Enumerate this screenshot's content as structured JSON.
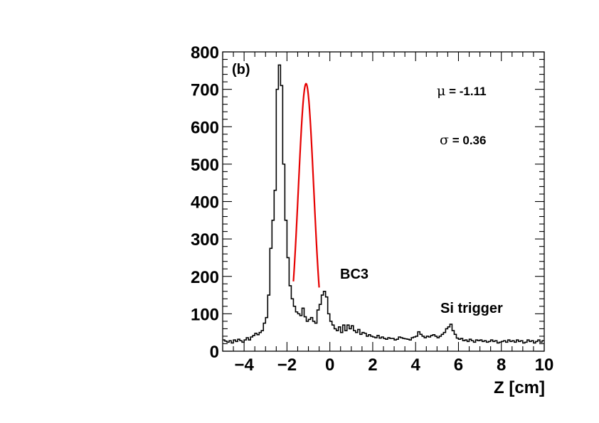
{
  "chart_data": {
    "type": "histogram",
    "panel_label": "(b)",
    "xlabel": "Z [cm]",
    "ylabel": "",
    "xlim": [
      -5,
      10
    ],
    "ylim": [
      0,
      800
    ],
    "x_ticks": [
      -4,
      -2,
      0,
      2,
      4,
      6,
      8,
      10
    ],
    "x_tick_labels": [
      "−4",
      "−2",
      "0",
      "2",
      "4",
      "6",
      "8",
      "10"
    ],
    "y_ticks": [
      0,
      100,
      200,
      300,
      400,
      500,
      600,
      700,
      800
    ],
    "y_tick_labels": [
      "0",
      "100",
      "200",
      "300",
      "400",
      "500",
      "600",
      "700",
      "800"
    ],
    "bin_width": 0.1,
    "bin_start": -5,
    "counts": [
      30,
      27,
      24,
      28,
      22,
      30,
      26,
      32,
      28,
      24,
      30,
      36,
      30,
      38,
      42,
      48,
      44,
      50,
      55,
      75,
      90,
      150,
      275,
      350,
      430,
      700,
      765,
      710,
      500,
      350,
      250,
      175,
      140,
      120,
      105,
      100,
      95,
      115,
      92,
      80,
      85,
      90,
      80,
      75,
      110,
      125,
      150,
      160,
      145,
      100,
      80,
      70,
      60,
      55,
      65,
      50,
      70,
      55,
      70,
      60,
      68,
      55,
      50,
      58,
      45,
      50,
      48,
      40,
      44,
      40,
      38,
      36,
      42,
      35,
      38,
      34,
      32,
      36,
      34,
      34,
      30,
      32,
      38,
      36,
      34,
      33,
      32,
      30,
      36,
      38,
      40,
      52,
      45,
      40,
      36,
      40,
      38,
      42,
      44,
      40,
      36,
      40,
      45,
      50,
      60,
      65,
      72,
      55,
      45,
      35,
      32,
      34,
      28,
      30,
      26,
      32,
      28,
      24,
      30,
      28,
      30,
      26,
      28,
      24,
      26,
      30,
      26,
      28,
      22,
      24,
      26,
      28,
      24,
      30,
      26,
      28,
      24,
      30,
      26,
      28,
      22,
      24,
      30,
      26,
      28,
      22,
      26,
      30,
      24,
      28
    ],
    "fit": {
      "function": "gaussian",
      "mean": -1.11,
      "sigma": 0.36,
      "amplitude": 715,
      "range": [
        -1.7,
        -0.5
      ],
      "color": "#e60000"
    },
    "annotations": [
      "BC3",
      "Si trigger"
    ],
    "stats": {
      "mu_symbol": "μ",
      "mu_text": " = -1.11",
      "sigma_symbol": "σ",
      "sigma_text": " = 0.36"
    },
    "colors": {
      "histogram": "#000000",
      "fit": "#e60000"
    }
  }
}
